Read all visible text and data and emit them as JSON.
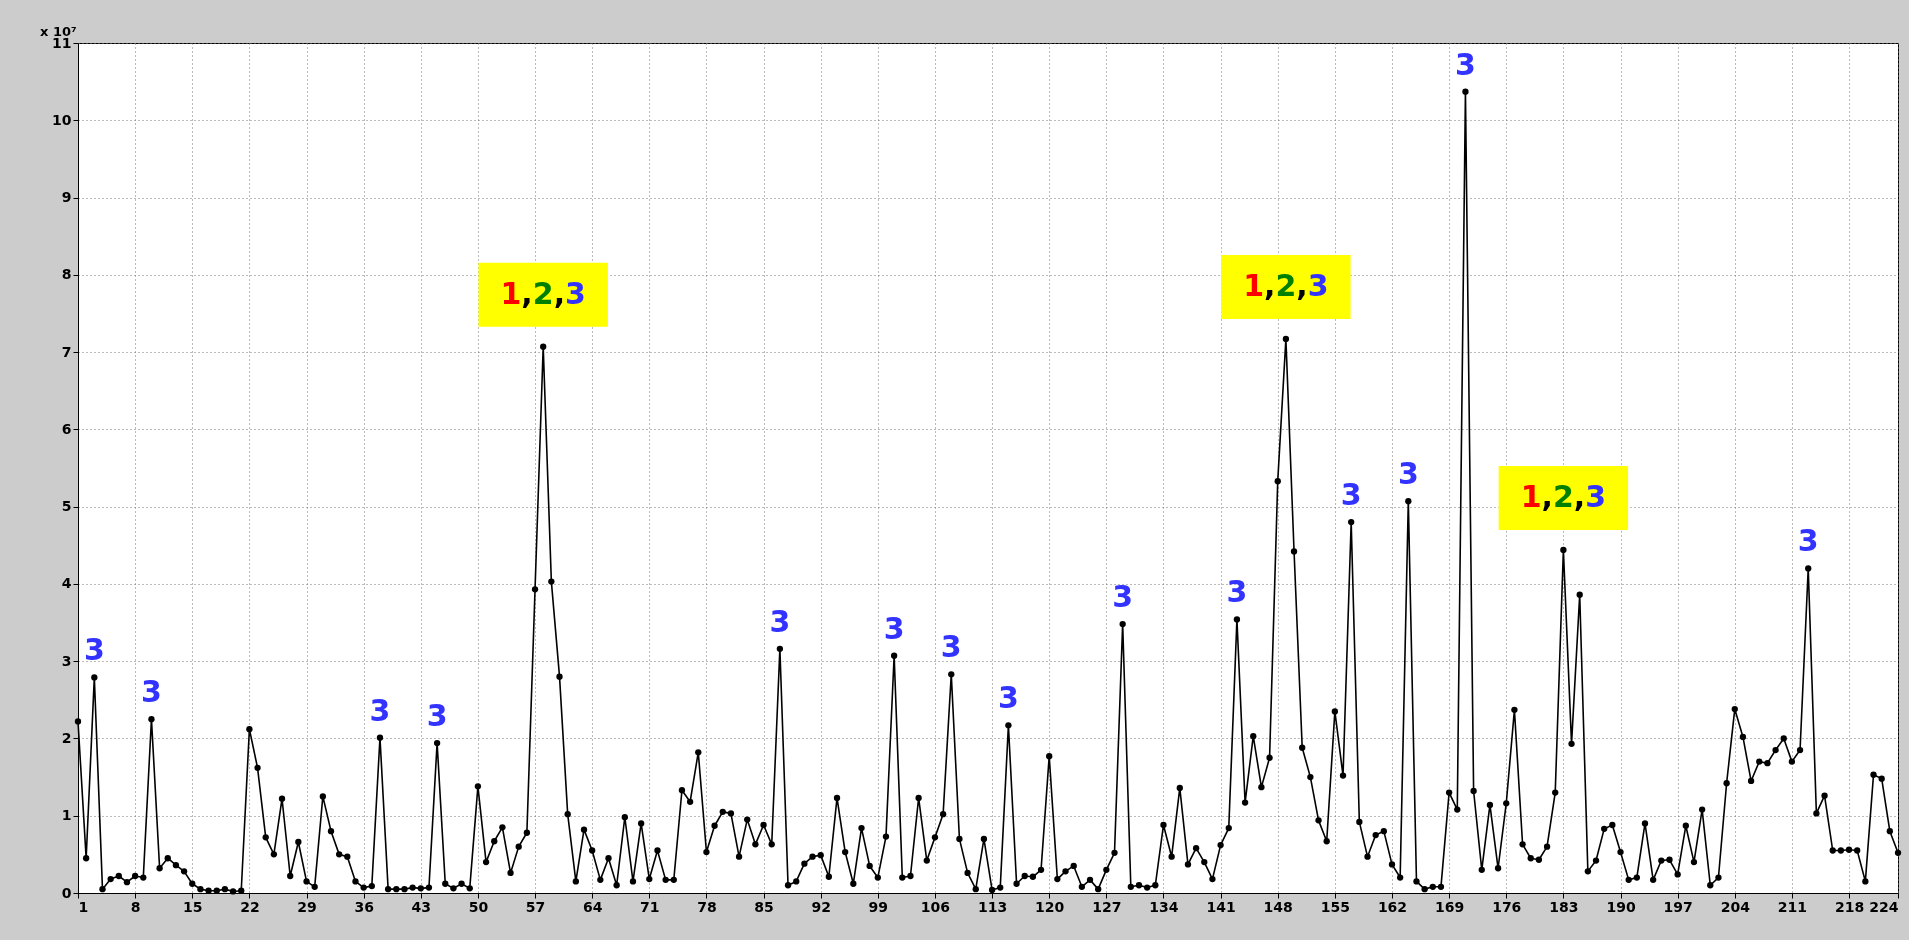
{
  "chart_data": {
    "type": "line",
    "marker": "circle",
    "line_style": "solid",
    "grid": true,
    "xlim": [
      1,
      224
    ],
    "ylim": [
      0,
      11
    ],
    "xticks": [
      1,
      8,
      15,
      22,
      29,
      36,
      43,
      50,
      57,
      64,
      71,
      78,
      85,
      92,
      99,
      106,
      113,
      120,
      127,
      134,
      141,
      148,
      155,
      162,
      169,
      176,
      183,
      190,
      197,
      204,
      211,
      218,
      224
    ],
    "yticks": [
      0,
      1,
      2,
      3,
      4,
      5,
      6,
      7,
      8,
      9,
      10,
      11
    ],
    "x": [
      1,
      2,
      3,
      4,
      5,
      6,
      7,
      8,
      9,
      10,
      11,
      12,
      13,
      14,
      15,
      16,
      17,
      18,
      19,
      20,
      21,
      22,
      23,
      24,
      25,
      26,
      27,
      28,
      29,
      30,
      31,
      32,
      33,
      34,
      35,
      36,
      37,
      38,
      39,
      40,
      41,
      42,
      43,
      44,
      45,
      46,
      47,
      48,
      49,
      50,
      51,
      52,
      53,
      54,
      55,
      56,
      57,
      58,
      59,
      60,
      61,
      62,
      63,
      64,
      65,
      66,
      67,
      68,
      69,
      70,
      71,
      72,
      73,
      74,
      75,
      76,
      77,
      78,
      79,
      80,
      81,
      82,
      83,
      84,
      85,
      86,
      87,
      88,
      89,
      90,
      91,
      92,
      93,
      94,
      95,
      96,
      97,
      98,
      99,
      100,
      101,
      102,
      103,
      104,
      105,
      106,
      107,
      108,
      109,
      110,
      111,
      112,
      113,
      114,
      115,
      116,
      117,
      118,
      119,
      120,
      121,
      122,
      123,
      124,
      125,
      126,
      127,
      128,
      129,
      130,
      131,
      132,
      133,
      134,
      135,
      136,
      137,
      138,
      139,
      140,
      141,
      142,
      143,
      144,
      145,
      146,
      147,
      148,
      149,
      150,
      151,
      152,
      153,
      154,
      155,
      156,
      157,
      158,
      159,
      160,
      161,
      162,
      163,
      164,
      165,
      166,
      167,
      168,
      169,
      170,
      171,
      172,
      173,
      174,
      175,
      176,
      177,
      178,
      179,
      180,
      181,
      182,
      183,
      184,
      185,
      186,
      187,
      188,
      189,
      190,
      191,
      192,
      193,
      194,
      195,
      196,
      197,
      198,
      199,
      200,
      201,
      202,
      203,
      204,
      205,
      206,
      207,
      208,
      209,
      210,
      211,
      212,
      213,
      214,
      215,
      216,
      217,
      218,
      219,
      220,
      221,
      222,
      223,
      224
    ],
    "series": [
      {
        "color": "#000000",
        "values": [
          2.22,
          0.45,
          2.79,
          0.05,
          0.18,
          0.22,
          0.14,
          0.22,
          0.2,
          2.25,
          0.32,
          0.45,
          0.36,
          0.28,
          0.12,
          0.05,
          0.03,
          0.03,
          0.05,
          0.02,
          0.03,
          2.12,
          1.62,
          0.72,
          0.5,
          1.22,
          0.22,
          0.66,
          0.15,
          0.08,
          1.25,
          0.8,
          0.5,
          0.47,
          0.15,
          0.07,
          0.09,
          2.01,
          0.05,
          0.05,
          0.05,
          0.07,
          0.06,
          0.07,
          1.94,
          0.12,
          0.06,
          0.12,
          0.06,
          1.38,
          0.4,
          0.67,
          0.85,
          0.26,
          0.6,
          0.78,
          3.93,
          7.07,
          4.03,
          2.8,
          1.02,
          0.15,
          0.82,
          0.55,
          0.17,
          0.45,
          0.1,
          0.98,
          0.15,
          0.9,
          0.18,
          0.55,
          0.17,
          0.17,
          1.33,
          1.18,
          1.82,
          0.53,
          0.87,
          1.05,
          1.03,
          0.47,
          0.95,
          0.63,
          0.88,
          0.63,
          3.16,
          0.1,
          0.15,
          0.38,
          0.47,
          0.49,
          0.21,
          1.23,
          0.53,
          0.12,
          0.84,
          0.35,
          0.2,
          0.73,
          3.07,
          0.2,
          0.22,
          1.23,
          0.42,
          0.72,
          1.02,
          2.83,
          0.7,
          0.26,
          0.05,
          0.7,
          0.04,
          0.07,
          2.17,
          0.12,
          0.22,
          0.21,
          0.3,
          1.77,
          0.18,
          0.28,
          0.35,
          0.08,
          0.17,
          0.05,
          0.3,
          0.52,
          3.48,
          0.08,
          0.1,
          0.07,
          0.1,
          0.88,
          0.47,
          1.36,
          0.37,
          0.58,
          0.4,
          0.18,
          0.62,
          0.84,
          3.54,
          1.17,
          2.03,
          1.37,
          1.75,
          5.33,
          7.17,
          4.42,
          1.88,
          1.5,
          0.94,
          0.67,
          2.35,
          1.52,
          4.8,
          0.92,
          0.47,
          0.75,
          0.8,
          0.37,
          0.2,
          5.07,
          0.15,
          0.05,
          0.08,
          0.08,
          1.3,
          1.08,
          10.37,
          1.32,
          0.3,
          1.14,
          0.32,
          1.16,
          2.37,
          0.63,
          0.45,
          0.43,
          0.6,
          1.3,
          4.44,
          1.93,
          3.86,
          0.28,
          0.42,
          0.83,
          0.88,
          0.53,
          0.17,
          0.2,
          0.9,
          0.17,
          0.42,
          0.43,
          0.24,
          0.87,
          0.4,
          1.08,
          0.1,
          0.2,
          1.42,
          2.38,
          2.02,
          1.45,
          1.7,
          1.68,
          1.85,
          2.0,
          1.7,
          1.85,
          4.2,
          1.03,
          1.26,
          0.55,
          0.55,
          0.56,
          0.55,
          0.15,
          1.53,
          1.48,
          0.8,
          0.52
        ]
      }
    ],
    "annotations": [
      "x 10⁷",
      {
        "text": "3",
        "x": 3,
        "y": 2.79
      },
      {
        "text": "3",
        "x": 10,
        "y": 2.25
      },
      {
        "text": "3",
        "x": 38,
        "y": 2.01
      },
      {
        "text": "3",
        "x": 45,
        "y": 1.94
      },
      {
        "text": "1,2,3",
        "x": 58,
        "y": 7.07
      },
      {
        "text": "3",
        "x": 87,
        "y": 3.16
      },
      {
        "text": "3",
        "x": 101,
        "y": 3.07
      },
      {
        "text": "3",
        "x": 108,
        "y": 2.83
      },
      {
        "text": "3",
        "x": 115,
        "y": 2.17
      },
      {
        "text": "3",
        "x": 129,
        "y": 3.48
      },
      {
        "text": "3",
        "x": 143,
        "y": 3.54
      },
      {
        "text": "1,2,3",
        "x": 149,
        "y": 7.17
      },
      {
        "text": "3",
        "x": 157,
        "y": 4.8
      },
      {
        "text": "3",
        "x": 164,
        "y": 5.07
      },
      {
        "text": "3",
        "x": 171,
        "y": 10.37
      },
      {
        "text": "1,2,3",
        "x": 183,
        "y": 4.44
      },
      {
        "text": "3",
        "x": 213,
        "y": 4.2
      }
    ]
  }
}
